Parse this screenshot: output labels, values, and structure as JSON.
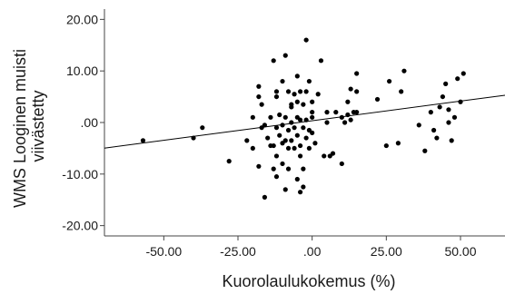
{
  "chart_data": {
    "type": "scatter",
    "title": "",
    "xlabel": "Kuorolaulukokemus (%)",
    "ylabel_lines": [
      "WMS Looginen muisti",
      "viivästetty"
    ],
    "xlim": [
      -70,
      65
    ],
    "ylim": [
      -22,
      22
    ],
    "x_ticks": [
      -50,
      -25,
      0,
      25,
      50
    ],
    "x_tick_labels": [
      "-50.00",
      "-25.00",
      ".00",
      "25.00",
      "50.00"
    ],
    "y_ticks": [
      20,
      10,
      0,
      -10,
      -20
    ],
    "y_tick_labels": [
      "20.00",
      "10.00",
      ".00",
      "-10.00",
      "-20.00"
    ],
    "grid": false,
    "legend": "none",
    "point_color": "#000000",
    "line_color": "#000000",
    "fit_line": {
      "slope": 0.076,
      "intercept": 0.35
    },
    "points": [
      {
        "x": -57,
        "y": -3.5
      },
      {
        "x": -40,
        "y": -3.0
      },
      {
        "x": -37,
        "y": -1.0
      },
      {
        "x": -28,
        "y": -7.5
      },
      {
        "x": -22,
        "y": -3.5
      },
      {
        "x": -20,
        "y": 1.0
      },
      {
        "x": -20,
        "y": -5.0
      },
      {
        "x": -18,
        "y": 5.0
      },
      {
        "x": -18,
        "y": 7.0
      },
      {
        "x": -18,
        "y": -8.5
      },
      {
        "x": -17,
        "y": 3.5
      },
      {
        "x": -17,
        "y": -1.0
      },
      {
        "x": -16,
        "y": -14.5
      },
      {
        "x": -16,
        "y": -0.5
      },
      {
        "x": -15,
        "y": -3.0
      },
      {
        "x": -14,
        "y": 1.0
      },
      {
        "x": -14,
        "y": -4.5
      },
      {
        "x": -13,
        "y": -9.0
      },
      {
        "x": -13,
        "y": -4.5
      },
      {
        "x": -13,
        "y": 12.0
      },
      {
        "x": -12,
        "y": 5.0
      },
      {
        "x": -12,
        "y": -1.0
      },
      {
        "x": -12,
        "y": -6.5
      },
      {
        "x": -12,
        "y": -10.5
      },
      {
        "x": -12,
        "y": 6.0
      },
      {
        "x": -11,
        "y": 1.5
      },
      {
        "x": -11,
        "y": -2.5
      },
      {
        "x": -10,
        "y": 8.0
      },
      {
        "x": -10,
        "y": -0.5
      },
      {
        "x": -10,
        "y": -4.0
      },
      {
        "x": -10,
        "y": -8.0
      },
      {
        "x": -9,
        "y": -13.0
      },
      {
        "x": -9,
        "y": 13.0
      },
      {
        "x": -9,
        "y": -3.5
      },
      {
        "x": -9,
        "y": 1.0
      },
      {
        "x": -8,
        "y": 6.0
      },
      {
        "x": -8,
        "y": -1.5
      },
      {
        "x": -8,
        "y": -5.0
      },
      {
        "x": -8,
        "y": -9.0
      },
      {
        "x": -7,
        "y": 3.0
      },
      {
        "x": -7,
        "y": -3.5
      },
      {
        "x": -7,
        "y": 0.0
      },
      {
        "x": -7,
        "y": 3.5
      },
      {
        "x": -6,
        "y": 5.5
      },
      {
        "x": -6,
        "y": -1.0
      },
      {
        "x": -6,
        "y": -5.0
      },
      {
        "x": -5,
        "y": 9.0
      },
      {
        "x": -5,
        "y": -11.0
      },
      {
        "x": -5,
        "y": 4.0
      },
      {
        "x": -5,
        "y": 1.0
      },
      {
        "x": -5,
        "y": -2.5
      },
      {
        "x": -4,
        "y": 6.0
      },
      {
        "x": -4,
        "y": 0.5
      },
      {
        "x": -4,
        "y": -4.5
      },
      {
        "x": -4,
        "y": -13.5
      },
      {
        "x": -4,
        "y": -6.5
      },
      {
        "x": -3,
        "y": 3.5
      },
      {
        "x": -3,
        "y": -1.0
      },
      {
        "x": -3,
        "y": -9.0
      },
      {
        "x": -3,
        "y": -12.5
      },
      {
        "x": -2,
        "y": 16.0
      },
      {
        "x": -2,
        "y": 0.5
      },
      {
        "x": -2,
        "y": -3.0
      },
      {
        "x": -2,
        "y": 6.0
      },
      {
        "x": -1,
        "y": 8.0
      },
      {
        "x": -1,
        "y": -5.0
      },
      {
        "x": -1,
        "y": -1.5
      },
      {
        "x": 0,
        "y": 4.0
      },
      {
        "x": 0,
        "y": 2.0
      },
      {
        "x": 0,
        "y": -2.0
      },
      {
        "x": 0,
        "y": 1.0
      },
      {
        "x": 1,
        "y": -4.0
      },
      {
        "x": 2,
        "y": 5.5
      },
      {
        "x": 3,
        "y": 12.0
      },
      {
        "x": 4,
        "y": -6.5
      },
      {
        "x": 5,
        "y": 2.0
      },
      {
        "x": 5,
        "y": 0.0
      },
      {
        "x": 6,
        "y": -6.5
      },
      {
        "x": 7,
        "y": -6.0
      },
      {
        "x": 8,
        "y": 2.0
      },
      {
        "x": 10,
        "y": -8.0
      },
      {
        "x": 10,
        "y": 1.0
      },
      {
        "x": 11,
        "y": 0.0
      },
      {
        "x": 12,
        "y": 1.5
      },
      {
        "x": 12,
        "y": 4.0
      },
      {
        "x": 13,
        "y": 6.5
      },
      {
        "x": 13,
        "y": 0.5
      },
      {
        "x": 14,
        "y": 2.0
      },
      {
        "x": 15,
        "y": 9.5
      },
      {
        "x": 15,
        "y": 6.0
      },
      {
        "x": 15,
        "y": 2.0
      },
      {
        "x": 22,
        "y": 4.5
      },
      {
        "x": 25,
        "y": -4.5
      },
      {
        "x": 26,
        "y": 8.0
      },
      {
        "x": 29,
        "y": -4.0
      },
      {
        "x": 30,
        "y": 6.0
      },
      {
        "x": 31,
        "y": 10.0
      },
      {
        "x": 36,
        "y": -0.5
      },
      {
        "x": 38,
        "y": -5.5
      },
      {
        "x": 40,
        "y": 2.0
      },
      {
        "x": 41,
        "y": -1.5
      },
      {
        "x": 42,
        "y": -3.0
      },
      {
        "x": 43,
        "y": 3.0
      },
      {
        "x": 44,
        "y": 5.0
      },
      {
        "x": 45,
        "y": 7.5
      },
      {
        "x": 46,
        "y": 2.5
      },
      {
        "x": 46,
        "y": 0.0
      },
      {
        "x": 47,
        "y": -3.5
      },
      {
        "x": 48,
        "y": 1.0
      },
      {
        "x": 49,
        "y": 8.5
      },
      {
        "x": 50,
        "y": 4.0
      },
      {
        "x": 51,
        "y": 9.5
      }
    ]
  }
}
